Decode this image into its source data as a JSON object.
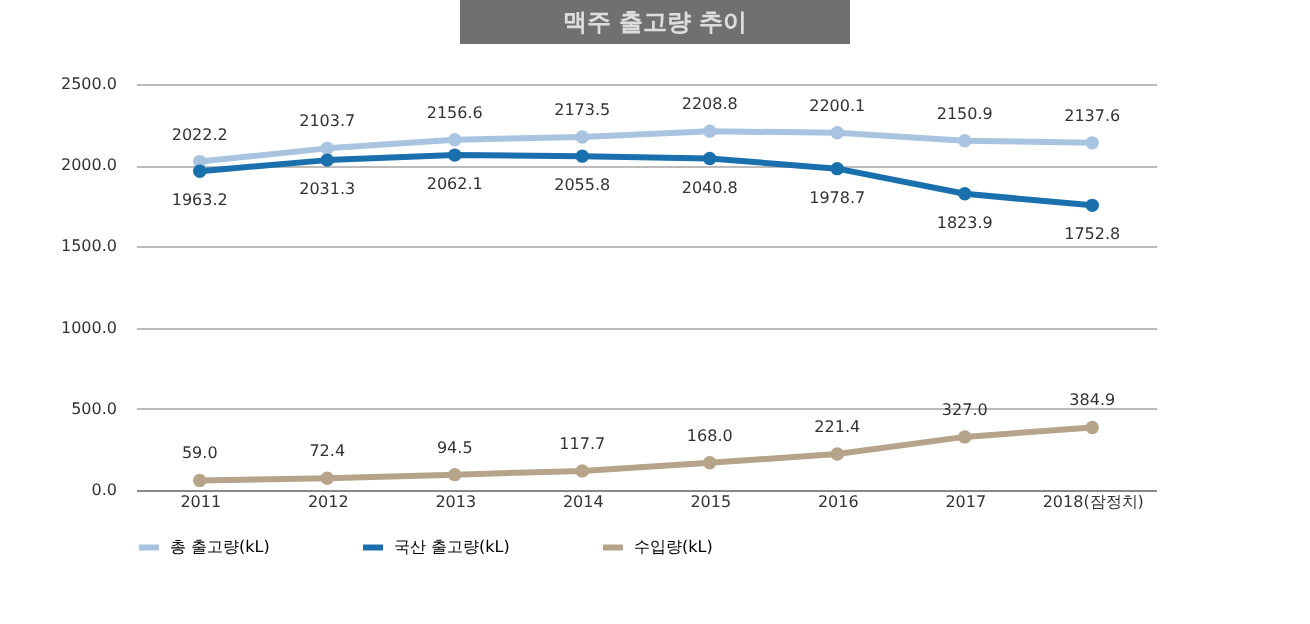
{
  "chart_data": {
    "type": "line",
    "title": "맥주 출고량 추이",
    "categories": [
      "2011",
      "2012",
      "2013",
      "2014",
      "2015",
      "2016",
      "2017",
      "2018(잠정치)"
    ],
    "series": [
      {
        "name": "총 출고량(kL)",
        "color": "#a9c4e0",
        "values": [
          2022.2,
          2103.7,
          2156.6,
          2173.5,
          2208.8,
          2200.1,
          2150.9,
          2137.6
        ],
        "value_labels": [
          "2022.2",
          "2103.7",
          "2156.6",
          "2173.5",
          "2208.8",
          "2200.1",
          "2150.9",
          "2137.6"
        ]
      },
      {
        "name": "국산 출고량(kL)",
        "color": "#1a6fad",
        "values": [
          1963.2,
          2031.3,
          2062.1,
          2055.8,
          2040.8,
          1978.7,
          1823.9,
          1752.8
        ],
        "value_labels": [
          "1963.2",
          "2031.3",
          "2062.1",
          "2055.8",
          "2040.8",
          "1978.7",
          "1823.9",
          "1752.8"
        ]
      },
      {
        "name": "수입량(kL)",
        "color": "#b5a48a",
        "values": [
          59.0,
          72.4,
          94.5,
          117.7,
          168.0,
          221.4,
          327.0,
          384.9
        ],
        "value_labels": [
          "59.0",
          "72.4",
          "94.5",
          "117.7",
          "168.0",
          "221.4",
          "327.0",
          "384.9"
        ]
      }
    ],
    "ylim": [
      0,
      2500
    ],
    "yticks": [
      {
        "value": 0,
        "label": "0.0"
      },
      {
        "value": 500,
        "label": "500.0"
      },
      {
        "value": 1000,
        "label": "1000.0"
      },
      {
        "value": 1500,
        "label": "1500.0"
      },
      {
        "value": 2000,
        "label": "2000.0"
      },
      {
        "value": 2500,
        "label": "2500.0"
      }
    ],
    "grid": "y",
    "legend": "bottom",
    "marker": "circle",
    "line_style": "solid"
  }
}
